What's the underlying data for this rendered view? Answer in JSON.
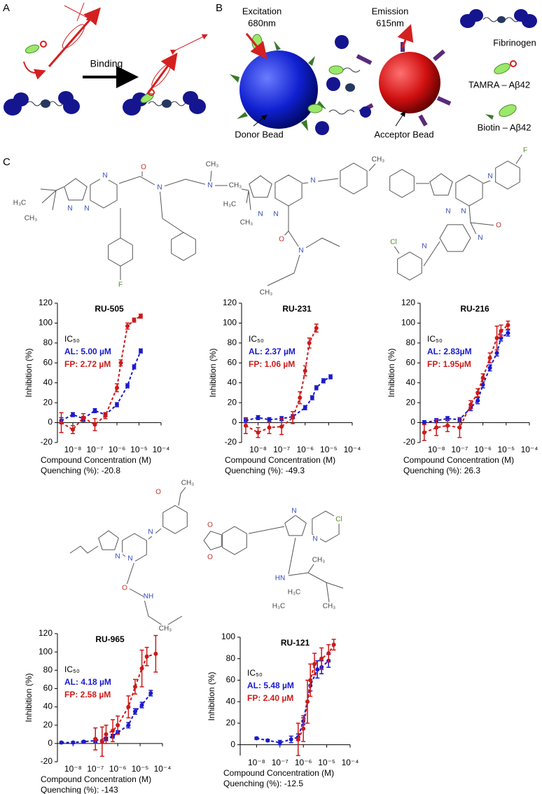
{
  "panel_labels": [
    "A",
    "B",
    "C"
  ],
  "panel_a": {
    "binding": "Binding"
  },
  "panel_b": {
    "excitation": "Excitation",
    "excitation_wavelength": "680nm",
    "emission": "Emission",
    "emission_wavelength": "615nm",
    "donor": "Donor Bead",
    "acceptor": "Acceptor Bead",
    "legend": [
      "Fibrinogen",
      "TAMRA – Aβ42",
      "Biotin – Aβ42"
    ]
  },
  "structures": [
    {
      "atoms": [
        "H₃C",
        "CH₃",
        "N",
        "N",
        "N",
        "O",
        "N",
        "N",
        "CH₃",
        "CH₃",
        "F"
      ]
    },
    {
      "atoms": [
        "H₃C",
        "CH₃",
        "N",
        "N",
        "N",
        "CH₃",
        "O",
        "N",
        "CH₃"
      ]
    },
    {
      "atoms": [
        "N",
        "N",
        "N",
        "F",
        "Cl",
        "N",
        "N",
        "O"
      ]
    },
    {
      "atoms": [
        "O",
        "CH₃",
        "N",
        "N",
        "N",
        "O",
        "NH",
        "CH₃"
      ]
    },
    {
      "atoms": [
        "N",
        "N",
        "Cl",
        "O",
        "O",
        "HN",
        "H₃C",
        "CH₃",
        "H₃C",
        "CH₃"
      ]
    }
  ],
  "chart_data": [
    {
      "type": "scatter",
      "title": "RU-505",
      "xlabel": "Compound Concentration (M)",
      "ylabel": "Inhibition (%)",
      "xscale": "log",
      "xlim": [
        2e-09,
        0.0001
      ],
      "ylim": [
        -20,
        120
      ],
      "xticks": [
        {
          "value": 1e-08,
          "label": "10⁻⁸"
        },
        {
          "value": 1e-07,
          "label": "10⁻⁷"
        },
        {
          "value": 1e-06,
          "label": "10⁻⁶"
        },
        {
          "value": 1e-05,
          "label": "10⁻⁵"
        },
        {
          "value": 0.0001,
          "label": "10⁻⁴"
        }
      ],
      "yticks": [
        -20,
        0,
        20,
        40,
        60,
        80,
        100,
        120
      ],
      "annotations": [
        "IC₅₀",
        "AL: 5.00 µM",
        "FP: 2.72 µM"
      ],
      "footnote": "Quenching (%): -20.8",
      "series": [
        {
          "color": "#1a1acc",
          "x": [
            3e-09,
            1e-08,
            3e-08,
            1e-07,
            3e-07,
            1e-06,
            3e-06,
            6e-06,
            1.2e-05
          ],
          "values": [
            2,
            8,
            4,
            12,
            8,
            18,
            37,
            56,
            72
          ],
          "errors": [
            3,
            2,
            2,
            2,
            2,
            2,
            2,
            2,
            2
          ]
        },
        {
          "color": "#cc1a1a",
          "x": [
            3e-09,
            1e-08,
            3e-08,
            1e-07,
            3e-07,
            1e-06,
            1.5e-06,
            3e-06,
            6e-06,
            1.2e-05
          ],
          "values": [
            0,
            -7,
            5,
            -2,
            7,
            35,
            60,
            97,
            103,
            107
          ],
          "errors": [
            10,
            4,
            4,
            6,
            3,
            4,
            3,
            3,
            2,
            2
          ]
        }
      ]
    },
    {
      "type": "scatter",
      "title": "RU-231",
      "xlabel": "Compound Concentration (M)",
      "ylabel": "Inhibition (%)",
      "xscale": "log",
      "xlim": [
        2e-09,
        0.0001
      ],
      "ylim": [
        -20,
        120
      ],
      "xticks": [
        {
          "value": 1e-08,
          "label": "10⁻⁸"
        },
        {
          "value": 1e-07,
          "label": "10⁻⁷"
        },
        {
          "value": 1e-06,
          "label": "10⁻⁶"
        },
        {
          "value": 1e-05,
          "label": "10⁻⁵"
        },
        {
          "value": 0.0001,
          "label": "10⁻⁴"
        }
      ],
      "yticks": [
        -20,
        0,
        20,
        40,
        60,
        80,
        100,
        120
      ],
      "annotations": [
        "IC₅₀",
        "AL: 2.37 µM",
        "FP: 1.06 µM"
      ],
      "footnote": "Quenching (%): -49.3",
      "series": [
        {
          "color": "#1a1acc",
          "x": [
            3e-09,
            1e-08,
            3e-08,
            1e-07,
            3e-07,
            1e-06,
            2e-06,
            3e-06,
            6e-06,
            1.2e-05
          ],
          "values": [
            2,
            5,
            3,
            4,
            6,
            15,
            25,
            35,
            42,
            46
          ],
          "errors": [
            2,
            2,
            2,
            2,
            2,
            2,
            2,
            2,
            2,
            2
          ]
        },
        {
          "color": "#cc1a1a",
          "x": [
            3e-09,
            1e-08,
            3e-08,
            1e-07,
            3e-07,
            6e-07,
            1e-06,
            1.5e-06,
            3e-06
          ],
          "values": [
            -3,
            -10,
            -5,
            -4,
            5,
            25,
            52,
            80,
            95
          ],
          "errors": [
            8,
            5,
            6,
            8,
            6,
            6,
            5,
            5,
            4
          ]
        }
      ]
    },
    {
      "type": "scatter",
      "title": "RU-216",
      "xlabel": "Compound Concentration (M)",
      "ylabel": "Inhibition (%)",
      "xscale": "log",
      "xlim": [
        2e-09,
        0.0001
      ],
      "ylim": [
        -20,
        120
      ],
      "xticks": [
        {
          "value": 1e-08,
          "label": "10⁻⁸"
        },
        {
          "value": 1e-07,
          "label": "10⁻⁷"
        },
        {
          "value": 1e-06,
          "label": "10⁻⁶"
        },
        {
          "value": 1e-05,
          "label": "10⁻⁵"
        },
        {
          "value": 0.0001,
          "label": "10⁻⁴"
        }
      ],
      "yticks": [
        -20,
        0,
        20,
        40,
        60,
        80,
        100,
        120
      ],
      "annotations": [
        "IC₅₀",
        "AL: 2.83µM",
        "FP: 1.95µM"
      ],
      "footnote": "Quenching (%): 26.3",
      "series": [
        {
          "color": "#1a1acc",
          "x": [
            3e-09,
            1e-08,
            3e-08,
            1e-07,
            3e-07,
            6e-07,
            1e-06,
            2e-06,
            4e-06,
            6e-06,
            1.2e-05
          ],
          "values": [
            0,
            2,
            4,
            3,
            15,
            22,
            38,
            55,
            70,
            85,
            90
          ],
          "errors": [
            2,
            2,
            2,
            2,
            3,
            3,
            3,
            3,
            3,
            3,
            3
          ]
        },
        {
          "color": "#cc1a1a",
          "x": [
            3e-09,
            1e-08,
            3e-08,
            1e-07,
            3e-07,
            6e-07,
            1e-06,
            2e-06,
            4e-06,
            6e-06,
            1.2e-05
          ],
          "values": [
            -10,
            -5,
            -3,
            -5,
            18,
            30,
            45,
            65,
            85,
            92,
            98
          ],
          "errors": [
            8,
            8,
            6,
            10,
            4,
            4,
            4,
            5,
            12,
            6,
            4
          ]
        }
      ]
    },
    {
      "type": "scatter",
      "title": "RU-965",
      "xlabel": "Compound Concentration (M)",
      "ylabel": "Inhibition (%)",
      "xscale": "log",
      "xlim": [
        2e-09,
        0.0001
      ],
      "ylim": [
        -20,
        120
      ],
      "xticks": [
        {
          "value": 1e-08,
          "label": "10⁻⁸"
        },
        {
          "value": 1e-07,
          "label": "10⁻⁷"
        },
        {
          "value": 1e-06,
          "label": "10⁻⁶"
        },
        {
          "value": 1e-05,
          "label": "10⁻⁵"
        },
        {
          "value": 0.0001,
          "label": "10⁻⁴"
        }
      ],
      "yticks": [
        -20,
        0,
        20,
        40,
        60,
        80,
        100,
        120
      ],
      "annotations": [
        "IC₅₀",
        "AL: 4.18 µM",
        "FP: 2.58 µM"
      ],
      "footnote": "Quenching (%): -143",
      "series": [
        {
          "color": "#1a1acc",
          "x": [
            3e-09,
            1e-08,
            3e-08,
            1e-07,
            3e-07,
            6e-07,
            1e-06,
            3e-06,
            6e-06,
            1.2e-05,
            3e-05
          ],
          "values": [
            1,
            1,
            2,
            3,
            5,
            8,
            12,
            20,
            35,
            42,
            55
          ],
          "errors": [
            1,
            1,
            1,
            2,
            2,
            2,
            2,
            3,
            3,
            3,
            3
          ]
        },
        {
          "color": "#cc1a1a",
          "x": [
            1e-07,
            2e-07,
            3e-07,
            6e-07,
            1e-06,
            3e-06,
            6e-06,
            1.2e-05,
            2e-05,
            5e-05
          ],
          "values": [
            5,
            2,
            10,
            14,
            20,
            40,
            62,
            82,
            95,
            98
          ],
          "errors": [
            12,
            16,
            10,
            12,
            10,
            12,
            8,
            20,
            10,
            20
          ]
        }
      ]
    },
    {
      "type": "scatter",
      "title": "RU-121",
      "xlabel": "Compound Concentration (M)",
      "ylabel": "Inhibition (%)",
      "xscale": "log",
      "xlim": [
        2e-09,
        0.0001
      ],
      "ylim": [
        -10,
        100
      ],
      "xticks": [
        {
          "value": 1e-08,
          "label": "10⁻⁸"
        },
        {
          "value": 1e-07,
          "label": "10⁻⁷"
        },
        {
          "value": 1e-06,
          "label": "10⁻⁶"
        },
        {
          "value": 1e-05,
          "label": "10⁻⁵"
        },
        {
          "value": 0.0001,
          "label": "10⁻⁴"
        }
      ],
      "yticks": [
        0,
        20,
        40,
        60,
        80,
        100
      ],
      "annotations": [
        "IC₅₀",
        "AL: 5.48 µM",
        "FP: 2.40 µM"
      ],
      "footnote": "Quenching (%): -12.5",
      "series": [
        {
          "color": "#1a1acc",
          "x": [
            1e-08,
            3e-08,
            1e-07,
            3e-07,
            6e-07,
            1e-06,
            2e-06,
            4e-06,
            6e-06,
            1.2e-05
          ],
          "values": [
            6,
            4,
            2,
            5,
            7,
            22,
            55,
            70,
            72,
            78
          ],
          "errors": [
            1,
            1,
            2,
            3,
            3,
            3,
            5,
            8,
            6,
            6
          ]
        },
        {
          "color": "#cc1a1a",
          "x": [
            6e-07,
            1e-06,
            1.5e-06,
            2e-06,
            3e-06,
            6e-06,
            1.2e-05,
            2e-05
          ],
          "values": [
            5,
            15,
            40,
            60,
            75,
            80,
            85,
            93
          ],
          "errors": [
            15,
            12,
            20,
            15,
            10,
            10,
            8,
            5
          ]
        }
      ]
    }
  ]
}
